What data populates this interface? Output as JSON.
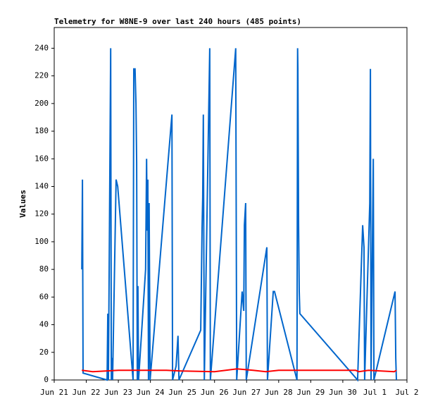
{
  "chart_data": {
    "type": "line",
    "title": "Telemetry for W8NE-9 over last 240 hours (485 points)",
    "y_label": "Values",
    "xlim": [
      0,
      11
    ],
    "xticks": [
      {
        "value": 0,
        "label": "Jun 21"
      },
      {
        "value": 1,
        "label": "Jun 22"
      },
      {
        "value": 2,
        "label": "Jun 23"
      },
      {
        "value": 3,
        "label": "Jun 24"
      },
      {
        "value": 4,
        "label": "Jun 25"
      },
      {
        "value": 5,
        "label": "Jun 26"
      },
      {
        "value": 6,
        "label": "Jun 27"
      },
      {
        "value": 7,
        "label": "Jun 28"
      },
      {
        "value": 8,
        "label": "Jun 29"
      },
      {
        "value": 9,
        "label": "Jun 30"
      },
      {
        "value": 10,
        "label": "Jul 1"
      },
      {
        "value": 11,
        "label": "Jul 2"
      }
    ],
    "ylim": [
      0,
      255
    ],
    "yticks": [
      0,
      20,
      40,
      60,
      80,
      100,
      120,
      140,
      160,
      180,
      200,
      220,
      240
    ],
    "series": [
      {
        "color": "#0066cc",
        "x": [
          0.86,
          0.88,
          0.9,
          1.65,
          1.67,
          1.69,
          1.76,
          1.78,
          1.8,
          1.82,
          1.93,
          1.98,
          2.46,
          2.48,
          2.52,
          2.55,
          2.57,
          2.59,
          2.61,
          2.63,
          2.85,
          2.88,
          2.9,
          2.92,
          2.94,
          2.96,
          2.99,
          3.67,
          3.69,
          3.8,
          3.86,
          3.89,
          4.57,
          4.61,
          4.63,
          4.65,
          4.68,
          4.85,
          4.87,
          5.66,
          5.69,
          5.86,
          5.91,
          5.93,
          5.97,
          5.99,
          6.63,
          6.65,
          6.83,
          6.87,
          7.57,
          7.59,
          7.6,
          7.62,
          7.64,
          7.66,
          9.46,
          9.62,
          9.66,
          9.68,
          9.84,
          9.86,
          9.88,
          9.95,
          9.97,
          10.63,
          10.65,
          10.67
        ],
        "values": [
          80,
          145,
          5,
          0,
          48,
          0,
          240,
          0,
          16,
          0,
          145,
          140,
          0,
          225,
          225,
          200,
          157,
          0,
          68,
          0,
          80,
          160,
          108,
          145,
          0,
          128,
          0,
          192,
          0,
          10,
          32,
          0,
          36,
          110,
          132,
          192,
          0,
          240,
          0,
          240,
          0,
          64,
          50,
          112,
          128,
          0,
          96,
          0,
          64,
          64,
          0,
          240,
          225,
          112,
          64,
          48,
          0,
          112,
          96,
          0,
          128,
          225,
          0,
          160,
          0,
          64,
          16,
          0
        ]
      },
      {
        "color": "#ff0000",
        "x": [
          0.86,
          1.2,
          2.0,
          3.5,
          4.0,
          5.0,
          5.7,
          6.2,
          6.6,
          7.0,
          9.4,
          9.5,
          9.8,
          10.6,
          10.67
        ],
        "values": [
          7,
          6,
          7,
          7,
          6.5,
          6,
          8,
          7,
          6,
          7,
          7,
          6,
          7,
          6,
          7
        ]
      }
    ]
  }
}
